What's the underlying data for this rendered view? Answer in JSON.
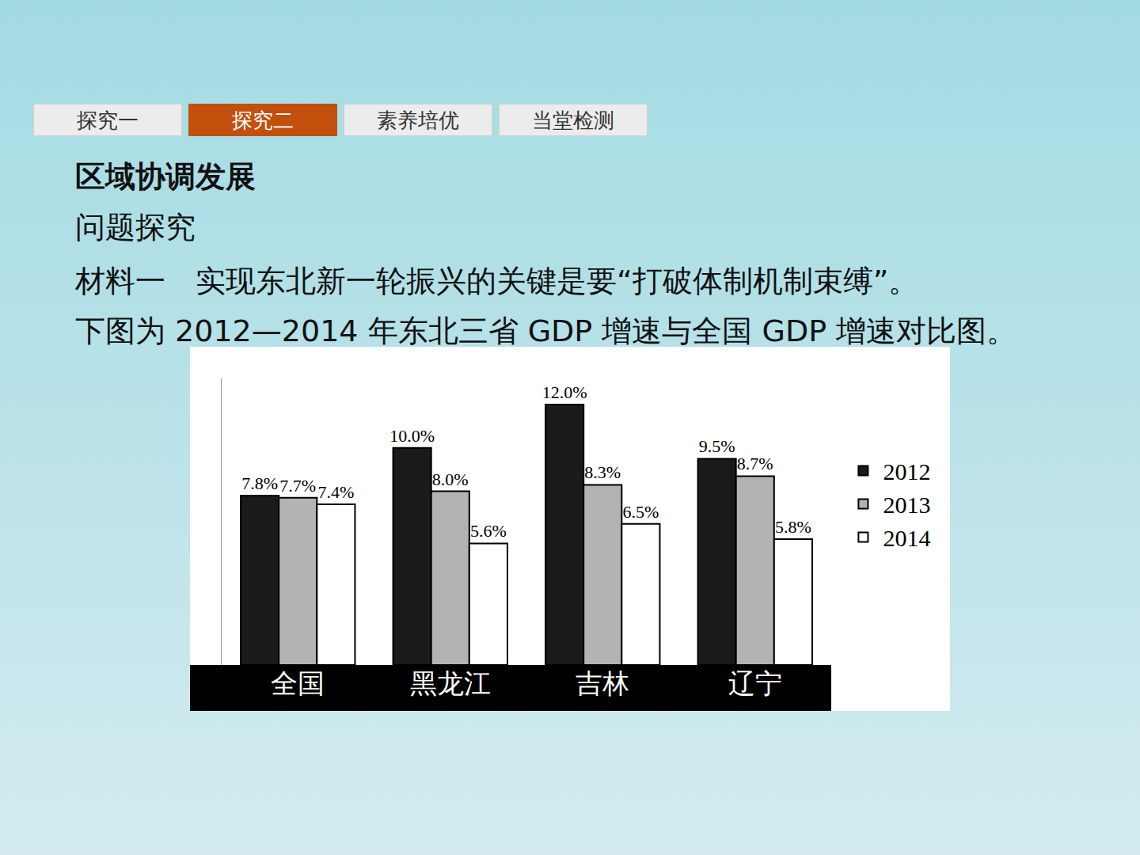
{
  "slide": {
    "tabs": [
      "探究一",
      "探究二",
      "素养培优",
      "当堂检测"
    ],
    "active_tab": "探究二",
    "heading": "区域协调发展",
    "subheading": "问题探究",
    "material": [
      "材料一　实现东北新一轮振兴的关键是要“打破体制机制束缚”。",
      "下图为 2012—2014 年东北三省 GDP 增速与全国 GDP 增速对比图。"
    ]
  },
  "chart_data": {
    "type": "bar",
    "categories": [
      "全国",
      "黑龙江",
      "吉林",
      "辽宁"
    ],
    "series": [
      {
        "name": "2012",
        "color": "#1a1a1a",
        "values": [
          7.8,
          10.0,
          12.0,
          9.5
        ],
        "value_labels": [
          "7.8%",
          "10.0%",
          "12.0%",
          "9.5%"
        ]
      },
      {
        "name": "2013",
        "color": "#b3b3b3",
        "values": [
          7.7,
          8.0,
          8.3,
          8.7
        ],
        "value_labels": [
          "7.7%",
          "8.0%",
          "8.3%",
          "8.7%"
        ]
      },
      {
        "name": "2014",
        "color": "#ffffff",
        "values": [
          7.4,
          5.6,
          6.5,
          5.8
        ],
        "value_labels": [
          "7.4%",
          "5.6%",
          "6.5%",
          "5.8%"
        ]
      }
    ],
    "ylim": [
      0,
      13.2
    ],
    "yticks": [],
    "data_labels": true,
    "tick_labels": "x",
    "grid": false,
    "legend": "right"
  }
}
